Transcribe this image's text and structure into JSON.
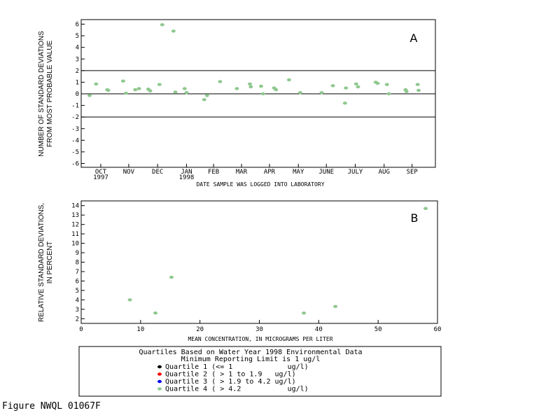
{
  "figure_caption": "Figure NWQL 01067F",
  "colors": {
    "points": "#8fc88f",
    "quartile_1": "#000000",
    "quartile_2": "#ff0000",
    "quartile_3": "#0000ff",
    "quartile_4": "#8fc88f"
  },
  "legend": {
    "title_line1": "Quartiles Based on Water Year 1998 Environmental Data",
    "title_line2": "Minimum Reporting Limit is 1 ug/l",
    "items": [
      {
        "label": "Quartile 1 (<= 1             ug/l)",
        "color": "#000000"
      },
      {
        "label": "Quartile 2 ( > 1 to 1.9   ug/l)",
        "color": "#ff0000"
      },
      {
        "label": "Quartile 3 ( > 1.9 to 4.2 ug/l)",
        "color": "#0000ff"
      },
      {
        "label": "Quartile 4 ( > 4.2           ug/l)",
        "color": "#8fc88f"
      }
    ]
  },
  "chart_data": [
    {
      "type": "scatter",
      "panel_label": "A",
      "xlabel": "DATE SAMPLE WAS LOGGED INTO LABORATORY",
      "ylabel_line1": "NUMBER OF STANDARD DEVIATIONS",
      "ylabel_line2": "FROM MOST PROBABLE VALUE",
      "ylim": [
        -6,
        6
      ],
      "yticks": [
        -6,
        -5,
        -4,
        -3,
        -2,
        -1,
        0,
        1,
        2,
        3,
        4,
        5,
        6
      ],
      "xlim": [
        "1997-09-24",
        "1998-10-09"
      ],
      "month_ticks": [
        {
          "label": "OCT",
          "date": "1997-10-15",
          "year": "1997"
        },
        {
          "label": "NOV",
          "date": "1997-11-14"
        },
        {
          "label": "DEC",
          "date": "1997-12-15"
        },
        {
          "label": "JAN",
          "date": "1998-01-15",
          "year": "1998"
        },
        {
          "label": "FEB",
          "date": "1998-02-13"
        },
        {
          "label": "MAR",
          "date": "1998-03-15"
        },
        {
          "label": "APR",
          "date": "1998-04-14"
        },
        {
          "label": "MAY",
          "date": "1998-05-15"
        },
        {
          "label": "JUNE",
          "date": "1998-06-14"
        },
        {
          "label": "JULY",
          "date": "1998-07-15"
        },
        {
          "label": "AUG",
          "date": "1998-08-15"
        },
        {
          "label": "SEP",
          "date": "1998-09-14"
        }
      ],
      "reference_lines": [
        2,
        0,
        -2
      ],
      "points": [
        {
          "x": "1997-10-03",
          "y": -0.15
        },
        {
          "x": "1997-10-10",
          "y": 0.85
        },
        {
          "x": "1997-10-22",
          "y": 0.35
        },
        {
          "x": "1997-10-23",
          "y": 0.3
        },
        {
          "x": "1997-11-08",
          "y": 1.1
        },
        {
          "x": "1997-11-11",
          "y": 0.05
        },
        {
          "x": "1997-11-21",
          "y": 0.35
        },
        {
          "x": "1997-11-25",
          "y": 0.45
        },
        {
          "x": "1997-12-05",
          "y": 0.4
        },
        {
          "x": "1997-12-07",
          "y": 0.25
        },
        {
          "x": "1997-12-17",
          "y": 0.8
        },
        {
          "x": "1997-12-20",
          "y": 5.95
        },
        {
          "x": "1998-01-01",
          "y": 5.4
        },
        {
          "x": "1998-01-03",
          "y": 0.15
        },
        {
          "x": "1998-01-13",
          "y": 0.45
        },
        {
          "x": "1998-01-15",
          "y": 0.1
        },
        {
          "x": "1998-02-03",
          "y": -0.5
        },
        {
          "x": "1998-02-06",
          "y": -0.15
        },
        {
          "x": "1998-02-20",
          "y": 1.05
        },
        {
          "x": "1998-03-10",
          "y": 0.45
        },
        {
          "x": "1998-03-24",
          "y": 0.85
        },
        {
          "x": "1998-03-25",
          "y": 0.6
        },
        {
          "x": "1998-04-05",
          "y": 0.65
        },
        {
          "x": "1998-04-07",
          "y": 0.0
        },
        {
          "x": "1998-04-19",
          "y": 0.5
        },
        {
          "x": "1998-04-21",
          "y": 0.35
        },
        {
          "x": "1998-05-05",
          "y": 1.2
        },
        {
          "x": "1998-05-17",
          "y": 0.1
        },
        {
          "x": "1998-06-09",
          "y": 0.1
        },
        {
          "x": "1998-06-21",
          "y": 0.7
        },
        {
          "x": "1998-07-04",
          "y": -0.8
        },
        {
          "x": "1998-07-05",
          "y": 0.5
        },
        {
          "x": "1998-07-16",
          "y": 0.85
        },
        {
          "x": "1998-07-18",
          "y": 0.6
        },
        {
          "x": "1998-08-06",
          "y": 1.0
        },
        {
          "x": "1998-08-08",
          "y": 0.9
        },
        {
          "x": "1998-08-18",
          "y": 0.8
        },
        {
          "x": "1998-08-20",
          "y": 0.0
        },
        {
          "x": "1998-09-07",
          "y": 0.35
        },
        {
          "x": "1998-09-08",
          "y": 0.2
        },
        {
          "x": "1998-09-20",
          "y": 0.8
        },
        {
          "x": "1998-09-21",
          "y": 0.3
        }
      ]
    },
    {
      "type": "scatter",
      "panel_label": "B",
      "xlabel": "MEAN CONCENTRATION, IN MICROGRAMS PER LITER",
      "ylabel_line1": "RELATIVE STANDARD DEVIATIONS,",
      "ylabel_line2": "IN PERCENT",
      "xlim": [
        0,
        60
      ],
      "xticks": [
        0,
        10,
        20,
        30,
        40,
        50,
        60
      ],
      "ylim": [
        1.5,
        14.5
      ],
      "yticks": [
        2,
        3,
        4,
        5,
        6,
        7,
        8,
        9,
        10,
        11,
        12,
        13,
        14
      ],
      "points": [
        {
          "x": 8.2,
          "y": 4.0
        },
        {
          "x": 12.5,
          "y": 2.6
        },
        {
          "x": 15.2,
          "y": 6.4
        },
        {
          "x": 37.5,
          "y": 2.6
        },
        {
          "x": 42.8,
          "y": 3.3
        },
        {
          "x": 58.0,
          "y": 13.7
        }
      ]
    }
  ]
}
